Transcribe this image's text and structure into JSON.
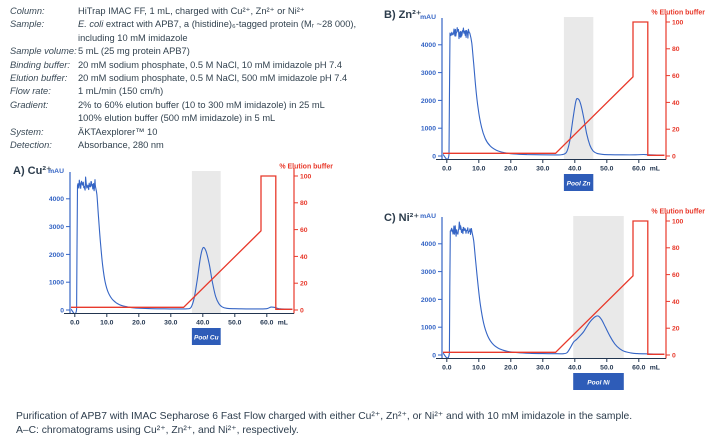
{
  "page": {
    "caption_line1": "Purification of APB7 with IMAC Sepharose 6 Fast Flow charged with either Cu²⁺, Zn²⁺, or Ni²⁺ and with 10 mM imidazole in the sample.",
    "caption_line2": "A–C: chromatograms using Cu²⁺, Zn²⁺, and Ni²⁺, respectively."
  },
  "colors": {
    "absorbance": "#3565c5",
    "gradient": "#e8392b",
    "pool_bar": "#2e5cb8",
    "pool_text": "#ffffff",
    "band": "#e9e9e9",
    "axis": "#22354f",
    "left_axis": "#3565c5",
    "right_axis": "#e8392b"
  },
  "conditions": {
    "rows": [
      {
        "label": "Column:",
        "lines": [
          "HiTrap IMAC FF, 1 mL, charged with Cu²⁺, Zn²⁺ or Ni²⁺"
        ]
      },
      {
        "label": "Sample:",
        "em": "E. coli",
        "lines": [
          " extract with APB7, a (histidine)₆-tagged protein (Mᵣ ~28 000),",
          "including 10 mM imidazole"
        ]
      },
      {
        "label": "Sample volume:",
        "lines": [
          "5 mL (25 mg protein APB7)"
        ]
      },
      {
        "label": "Binding buffer:",
        "lines": [
          "20 mM sodium phosphate, 0.5 M NaCl, 10 mM imidazole pH 7.4"
        ]
      },
      {
        "label": "Elution buffer:",
        "lines": [
          "20 mM sodium phosphate, 0.5 M NaCl, 500 mM imidazole pH 7.4"
        ]
      },
      {
        "label": "Flow rate:",
        "lines": [
          "1 mL/min (150 cm/h)"
        ]
      },
      {
        "label": "Gradient:",
        "lines": [
          "2% to 60% elution buffer (10 to 300 mM imidazole) in 25 mL",
          "100% elution buffer (500 mM imidazole) in 5 mL"
        ]
      },
      {
        "label": "System:",
        "lines": [
          "ÄKTAexplorer™ 10"
        ]
      },
      {
        "label": "Detection:",
        "lines": [
          "Absorbance, 280 nm"
        ]
      }
    ]
  },
  "chart_data": [
    {
      "type": "line",
      "id": "cu",
      "title": "A) Cu²⁺",
      "y_left_label": "mAU",
      "y_right_label": "% Elution buffer",
      "x_unit": "mL",
      "x_ticks": [
        0,
        10,
        20,
        30,
        40,
        50,
        60
      ],
      "y_left_ticks": [
        0,
        1000,
        2000,
        3000,
        4000
      ],
      "y_right_ticks": [
        0,
        20,
        40,
        60,
        80,
        100
      ],
      "x_range": [
        -1.5,
        68.5
      ],
      "y_left_range": [
        0,
        4800
      ],
      "y_right_range": [
        0,
        100
      ],
      "pool": {
        "label": "Pool Cu",
        "from": 36.6,
        "to": 45.6
      },
      "band": {
        "from": 36.6,
        "to": 45.6
      },
      "noise": {
        "from": 0.85,
        "to": 6.4,
        "base": 4480,
        "amp": 170
      },
      "absorbance_mAU": [
        [
          -1.2,
          25
        ],
        [
          0.55,
          25
        ],
        [
          0.7,
          2200
        ],
        [
          0.85,
          4480
        ],
        [
          6.4,
          4480
        ],
        [
          6.9,
          4150
        ],
        [
          7.4,
          3350
        ],
        [
          8.0,
          2450
        ],
        [
          8.7,
          1620
        ],
        [
          9.5,
          1000
        ],
        [
          10.5,
          620
        ],
        [
          12,
          350
        ],
        [
          14,
          190
        ],
        [
          17,
          100
        ],
        [
          20,
          65
        ],
        [
          24,
          48
        ],
        [
          28,
          42
        ],
        [
          32,
          38
        ],
        [
          35,
          42
        ],
        [
          36.3,
          95
        ],
        [
          37.3,
          430
        ],
        [
          38.3,
          1120
        ],
        [
          39.3,
          1920
        ],
        [
          40.1,
          2240
        ],
        [
          41,
          2120
        ],
        [
          42,
          1660
        ],
        [
          43,
          1000
        ],
        [
          44,
          490
        ],
        [
          45,
          230
        ],
        [
          46,
          115
        ],
        [
          47.5,
          62
        ],
        [
          50,
          47
        ],
        [
          54,
          41
        ],
        [
          58,
          38
        ],
        [
          60,
          48
        ],
        [
          61.3,
          105
        ],
        [
          62.5,
          92
        ],
        [
          63.8,
          48
        ],
        [
          65.5,
          32
        ],
        [
          68,
          28
        ]
      ],
      "elution_pct": [
        [
          -1.2,
          2
        ],
        [
          34,
          2
        ],
        [
          58.2,
          59
        ],
        [
          58.2,
          100
        ],
        [
          62.8,
          100
        ],
        [
          62.8,
          0.5
        ],
        [
          68,
          0.5
        ]
      ]
    },
    {
      "type": "line",
      "id": "zn",
      "title": "B) Zn²⁺",
      "y_left_label": "mAU",
      "y_right_label": "% Elution buffer",
      "x_unit": "mL",
      "x_ticks": [
        0,
        10,
        20,
        30,
        40,
        50,
        60
      ],
      "y_left_ticks": [
        0,
        1000,
        2000,
        3000,
        4000
      ],
      "y_right_ticks": [
        0,
        20,
        40,
        60,
        80,
        100
      ],
      "x_range": [
        -1.5,
        68.5
      ],
      "y_left_range": [
        0,
        4800
      ],
      "y_right_range": [
        0,
        100
      ],
      "pool": {
        "label": "Pool Zn",
        "from": 36.6,
        "to": 45.8
      },
      "band": {
        "from": 36.6,
        "to": 45.8
      },
      "noise": {
        "from": 1.0,
        "to": 7.2,
        "base": 4420,
        "amp": 165
      },
      "absorbance_mAU": [
        [
          -1.2,
          55
        ],
        [
          0.7,
          55
        ],
        [
          0.85,
          2400
        ],
        [
          1.0,
          4420
        ],
        [
          7.2,
          4420
        ],
        [
          7.8,
          4060
        ],
        [
          8.4,
          3320
        ],
        [
          9.0,
          2520
        ],
        [
          9.8,
          1700
        ],
        [
          10.8,
          1060
        ],
        [
          12,
          630
        ],
        [
          13.5,
          370
        ],
        [
          15.5,
          210
        ],
        [
          18,
          120
        ],
        [
          21,
          76
        ],
        [
          25,
          52
        ],
        [
          30,
          44
        ],
        [
          34,
          40
        ],
        [
          36,
          50
        ],
        [
          37.4,
          135
        ],
        [
          38.4,
          530
        ],
        [
          39.4,
          1320
        ],
        [
          40.3,
          1960
        ],
        [
          40.9,
          2060
        ],
        [
          41.7,
          1920
        ],
        [
          42.7,
          1430
        ],
        [
          43.7,
          810
        ],
        [
          44.7,
          395
        ],
        [
          45.7,
          185
        ],
        [
          46.8,
          98
        ],
        [
          48.5,
          60
        ],
        [
          51,
          47
        ],
        [
          55,
          42
        ],
        [
          59,
          42
        ],
        [
          61.5,
          54
        ],
        [
          63.2,
          42
        ],
        [
          65.5,
          34
        ],
        [
          68,
          30
        ]
      ],
      "elution_pct": [
        [
          -1.2,
          2
        ],
        [
          34,
          2
        ],
        [
          58.2,
          59
        ],
        [
          58.2,
          100
        ],
        [
          62.8,
          100
        ],
        [
          62.8,
          0.5
        ],
        [
          68,
          0.5
        ]
      ]
    },
    {
      "type": "line",
      "id": "ni",
      "title": "C) Ni²⁺",
      "y_left_label": "mAU",
      "y_right_label": "% Elution buffer",
      "x_unit": "mL",
      "x_ticks": [
        0,
        10,
        20,
        30,
        40,
        50,
        60
      ],
      "y_left_ticks": [
        0,
        1000,
        2000,
        3000,
        4000
      ],
      "y_right_ticks": [
        0,
        20,
        40,
        60,
        80,
        100
      ],
      "x_range": [
        -1.5,
        68.5
      ],
      "y_left_range": [
        0,
        4800
      ],
      "y_right_range": [
        0,
        100
      ],
      "pool": {
        "label": "Pool Ni",
        "from": 39.5,
        "to": 55.3
      },
      "band": {
        "from": 39.5,
        "to": 55.3
      },
      "noise": {
        "from": 1.1,
        "to": 7.8,
        "base": 4460,
        "amp": 170
      },
      "absorbance_mAU": [
        [
          -1.2,
          65
        ],
        [
          0.8,
          65
        ],
        [
          0.95,
          2400
        ],
        [
          1.1,
          4460
        ],
        [
          7.8,
          4460
        ],
        [
          8.4,
          4110
        ],
        [
          9.0,
          3400
        ],
        [
          9.7,
          2600
        ],
        [
          10.5,
          1800
        ],
        [
          11.5,
          1150
        ],
        [
          12.8,
          680
        ],
        [
          14.5,
          380
        ],
        [
          16.5,
          220
        ],
        [
          19,
          130
        ],
        [
          22,
          85
        ],
        [
          26,
          60
        ],
        [
          30,
          50
        ],
        [
          34,
          45
        ],
        [
          36.5,
          46
        ],
        [
          37.6,
          85
        ],
        [
          38.6,
          260
        ],
        [
          39.6,
          460
        ],
        [
          40.6,
          565
        ],
        [
          41.6,
          685
        ],
        [
          42.8,
          845
        ],
        [
          44,
          1065
        ],
        [
          45.3,
          1265
        ],
        [
          46.5,
          1385
        ],
        [
          47.4,
          1400
        ],
        [
          48.4,
          1265
        ],
        [
          49.6,
          995
        ],
        [
          51,
          675
        ],
        [
          52.5,
          400
        ],
        [
          54,
          228
        ],
        [
          55.5,
          130
        ],
        [
          57.5,
          75
        ],
        [
          59.5,
          50
        ],
        [
          62,
          42
        ],
        [
          64.5,
          37
        ],
        [
          68,
          30
        ]
      ],
      "elution_pct": [
        [
          -1.2,
          2
        ],
        [
          34,
          2
        ],
        [
          58.2,
          59
        ],
        [
          58.2,
          100
        ],
        [
          62.8,
          100
        ],
        [
          62.8,
          0.5
        ],
        [
          68,
          0.5
        ]
      ]
    }
  ]
}
